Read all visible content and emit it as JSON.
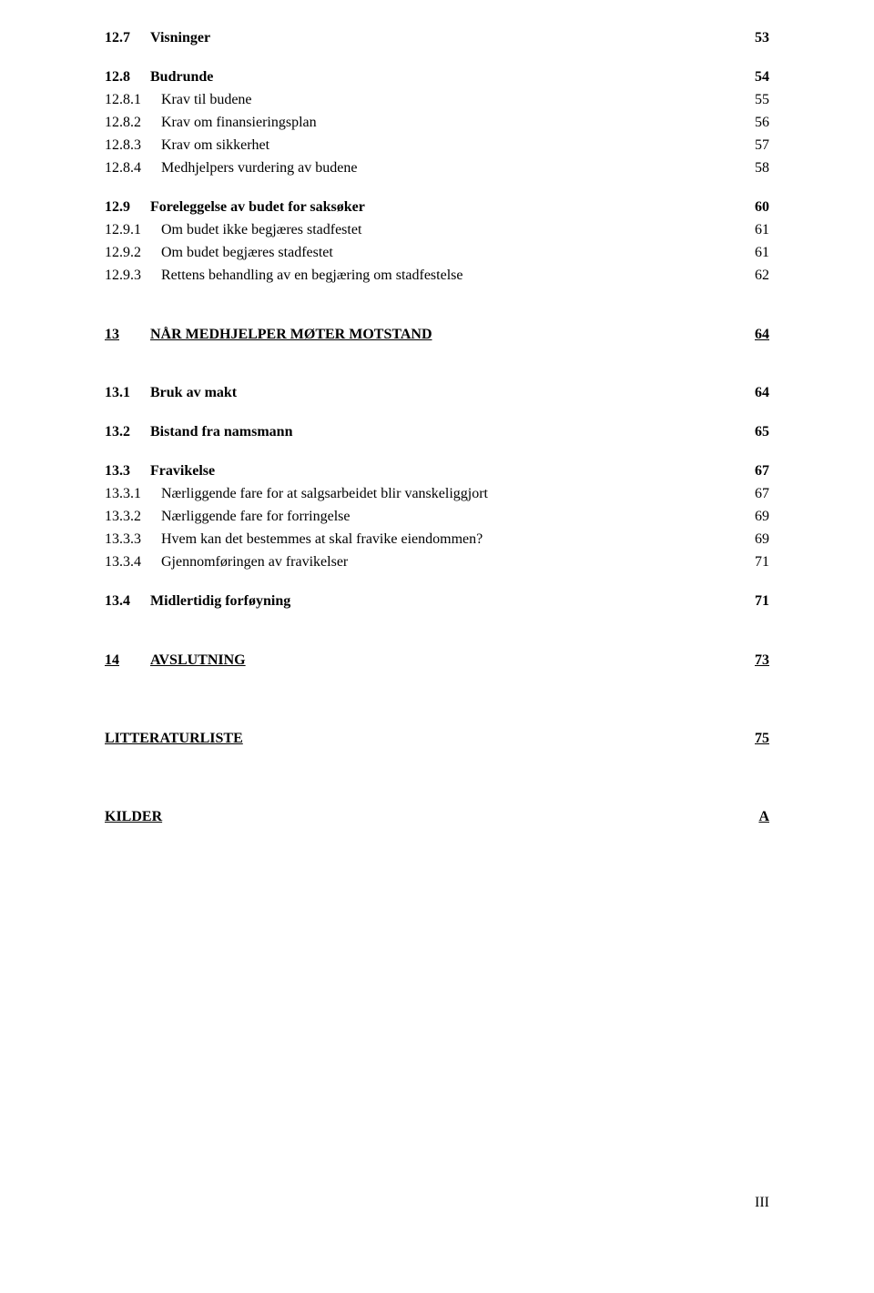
{
  "toc": {
    "s12_7": {
      "num": "12.7",
      "title": "Visninger",
      "page": "53"
    },
    "s12_8": {
      "num": "12.8",
      "title": "Budrunde",
      "page": "54"
    },
    "s12_8_1": {
      "num": "12.8.1",
      "title": "Krav til budene",
      "page": "55"
    },
    "s12_8_2": {
      "num": "12.8.2",
      "title": "Krav om finansieringsplan",
      "page": "56"
    },
    "s12_8_3": {
      "num": "12.8.3",
      "title": "Krav om sikkerhet",
      "page": "57"
    },
    "s12_8_4": {
      "num": "12.8.4",
      "title": "Medhjelpers vurdering av budene",
      "page": "58"
    },
    "s12_9": {
      "num": "12.9",
      "title": "Foreleggelse av budet for saksøker",
      "page": "60"
    },
    "s12_9_1": {
      "num": "12.9.1",
      "title": "Om budet ikke begjæres stadfestet",
      "page": "61"
    },
    "s12_9_2": {
      "num": "12.9.2",
      "title": "Om budet begjæres stadfestet",
      "page": "61"
    },
    "s12_9_3": {
      "num": "12.9.3",
      "title": "Rettens behandling av en begjæring om stadfestelse",
      "page": "62"
    },
    "s13": {
      "num": "13",
      "title": "NÅR MEDHJELPER MØTER MOTSTAND",
      "page": "64"
    },
    "s13_1": {
      "num": "13.1",
      "title": "Bruk av makt",
      "page": "64"
    },
    "s13_2": {
      "num": "13.2",
      "title": "Bistand fra namsmann",
      "page": "65"
    },
    "s13_3": {
      "num": "13.3",
      "title": "Fravikelse",
      "page": "67"
    },
    "s13_3_1": {
      "num": "13.3.1",
      "title": "Nærliggende fare for at salgsarbeidet blir vanskeliggjort",
      "page": "67"
    },
    "s13_3_2": {
      "num": "13.3.2",
      "title": "Nærliggende fare for forringelse",
      "page": "69"
    },
    "s13_3_3": {
      "num": "13.3.3",
      "title": "Hvem kan det bestemmes at skal fravike eiendommen?",
      "page": "69"
    },
    "s13_3_4": {
      "num": "13.3.4",
      "title": "Gjennomføringen av fravikelser",
      "page": "71"
    },
    "s13_4": {
      "num": "13.4",
      "title": "Midlertidig forføyning",
      "page": "71"
    },
    "s14": {
      "num": "14",
      "title": "AVSLUTNING",
      "page": "73"
    },
    "litt": {
      "title": "LITTERATURLISTE",
      "page": "75"
    },
    "kilder": {
      "title": "KILDER",
      "page": "A"
    }
  },
  "page_number": "III"
}
